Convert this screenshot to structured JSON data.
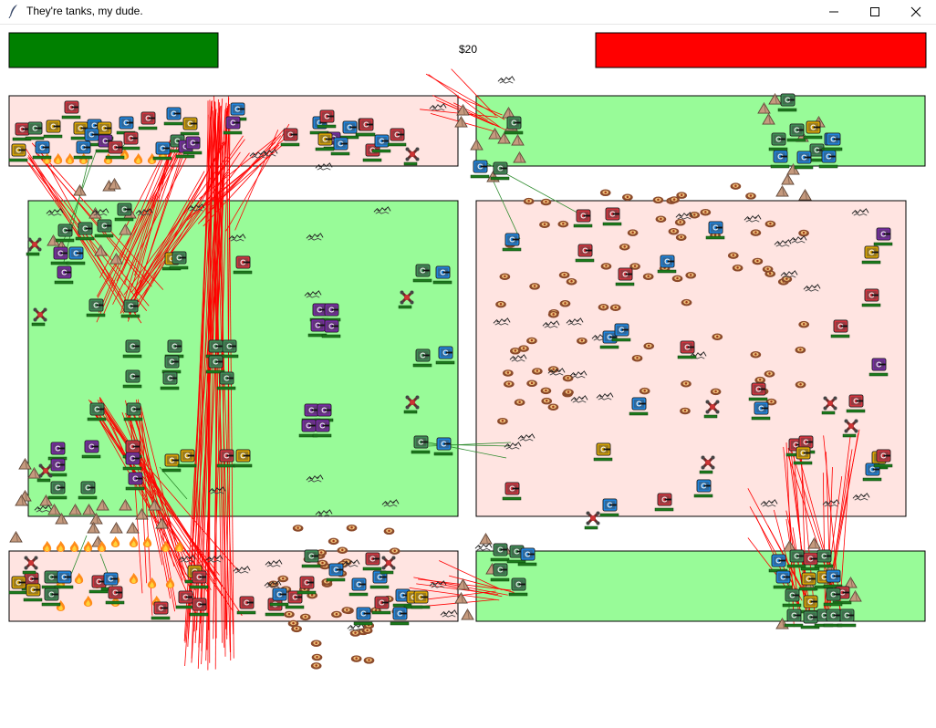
{
  "window": {
    "title": "They're tanks, my dude.",
    "controls": [
      "minimize",
      "maximize",
      "close"
    ]
  },
  "hud": {
    "money": "$20",
    "player_bar_color": "#008000",
    "enemy_bar_color": "#ff0000"
  },
  "colors": {
    "friendly_zone": "#98fb98",
    "enemy_zone": "#ffe4e1",
    "laser_red": "#ff0000",
    "laser_green": "#2e8b2e",
    "healthbar": "#1c7a1c",
    "tank_red": "#d9343f",
    "tank_green": "#3f8f55",
    "tank_purple": "#7a2aa8",
    "tank_blue": "#1e88e5",
    "tank_yellow": "#e0a800",
    "rock": "#c59a7e",
    "crater": "#8b4a2b"
  },
  "icons": [
    "feather-icon",
    "minimize-icon",
    "maximize-icon",
    "close-icon",
    "tank-icon",
    "drone-icon",
    "rock-icon",
    "crater-icon",
    "debris-icon",
    "fire-icon"
  ]
}
